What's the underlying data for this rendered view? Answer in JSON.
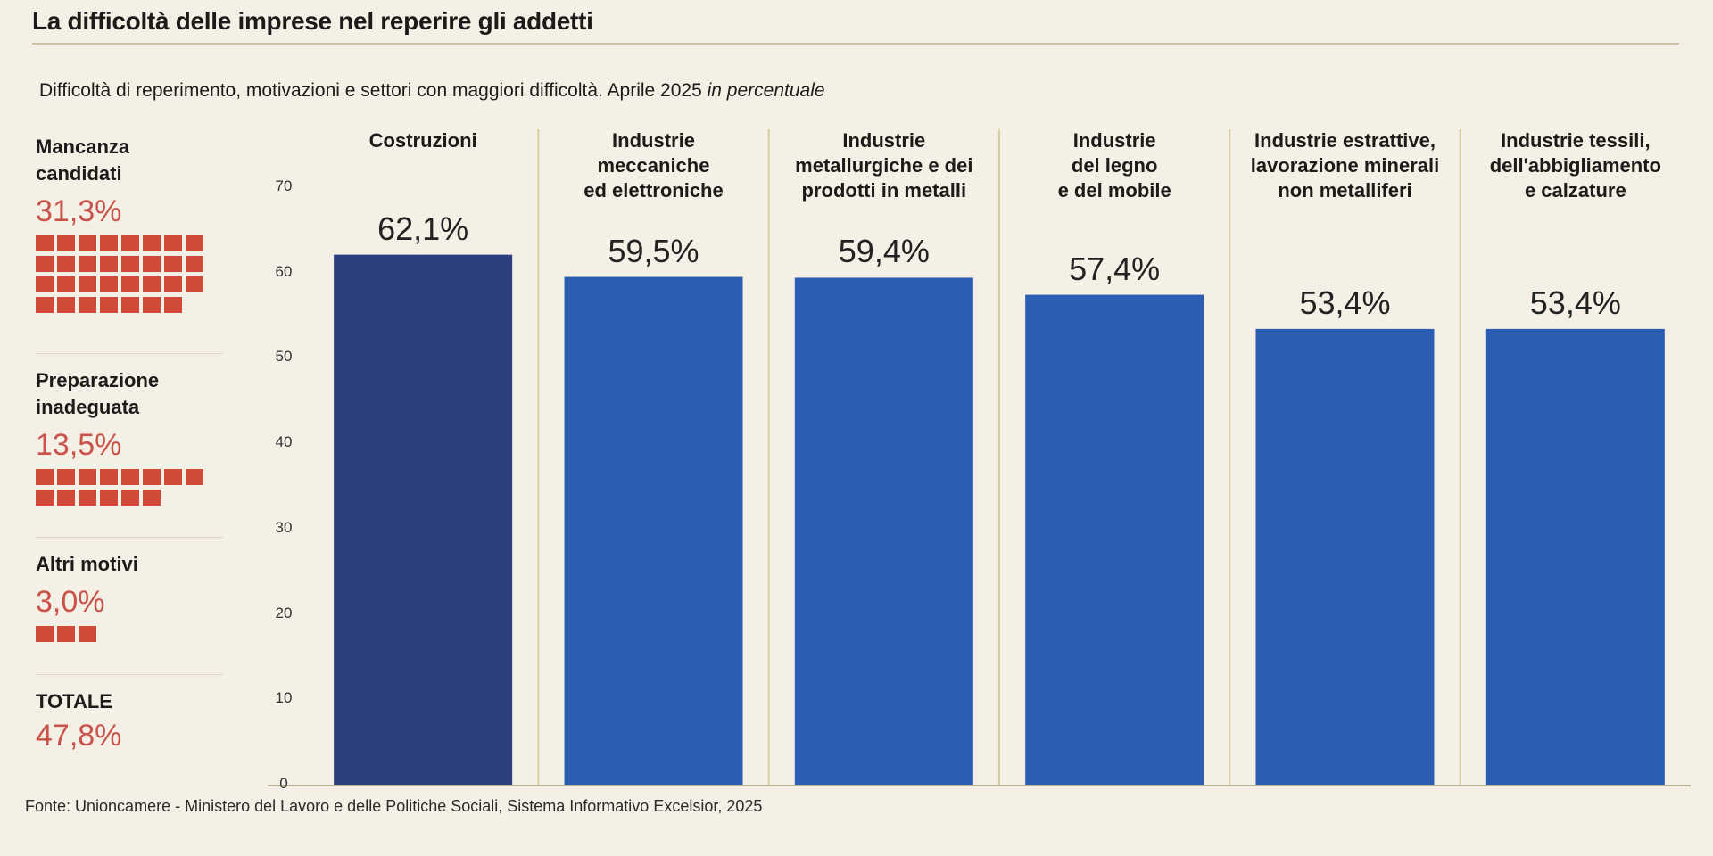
{
  "title": "La difficoltà delle imprese nel reperire gli addetti",
  "subtitle_main": "Difficoltà di reperimento, motivazioni e settori con maggiori difficoltà. Aprile 2025",
  "subtitle_italic": "in percentuale",
  "source": "Fonte: Unioncamere - Ministero del Lavoro e delle Politiche Sociali, Sistema Informativo Excelsior, 2025",
  "reasons": [
    {
      "label": "Mancanza candidati",
      "value": "31,3%",
      "squares": 31
    },
    {
      "label": "Preparazione inadeguata",
      "value": "13,5%",
      "squares": 14
    },
    {
      "label": "Altri motivi",
      "value": "3,0%",
      "squares": 3
    }
  ],
  "total": {
    "label": "TOTALE",
    "value": "47,8%"
  },
  "colors": {
    "reason_squares": "#d24a3a",
    "bar_first": "#2e3f80",
    "bar_other": "#2b5db3",
    "divider": "#d8cfa0"
  },
  "chart_data": {
    "type": "bar",
    "categories": [
      "Costruzioni",
      "Industrie meccaniche ed elettroniche",
      "Industrie metallurgiche e dei prodotti in metalli",
      "Industrie del legno e del mobile",
      "Industrie estrattive, lavorazione minerali non metalliferi",
      "Industrie tessili, dell'abbigliamento e calzature"
    ],
    "category_lines": [
      [
        "Costruzioni"
      ],
      [
        "Industrie",
        "meccaniche",
        "ed elettroniche"
      ],
      [
        "Industrie",
        "metallurgiche e dei",
        "prodotti in metalli"
      ],
      [
        "Industrie",
        "del legno",
        "e del mobile"
      ],
      [
        "Industrie estrattive,",
        "lavorazione minerali",
        "non metalliferi"
      ],
      [
        "Industrie tessili,",
        "dell'abbigliamento",
        "e calzature"
      ]
    ],
    "values": [
      62.1,
      59.5,
      59.4,
      57.4,
      53.4,
      53.4
    ],
    "value_labels": [
      "62,1%",
      "59,5%",
      "59,4%",
      "57,4%",
      "53,4%",
      "53,4%"
    ],
    "yticks": [
      0,
      10,
      20,
      30,
      40,
      50,
      60,
      70
    ],
    "ylim": [
      0,
      70
    ],
    "grid": false
  }
}
